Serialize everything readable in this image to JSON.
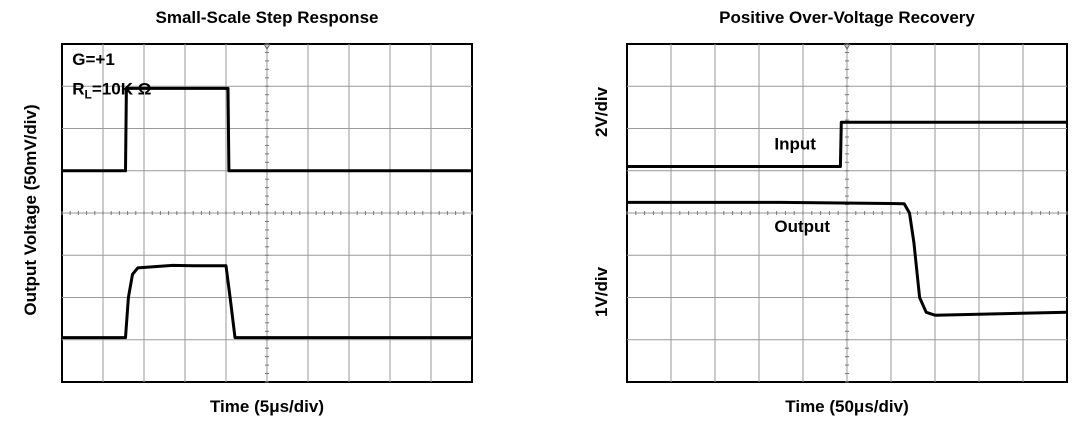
{
  "chart_data": [
    {
      "type": "line",
      "title": "Small-Scale Step Response",
      "xlabel": "Time (5μs/div)",
      "ylabel": "Output Voltage (50mV/div)",
      "grid": true,
      "x_divisions": 10,
      "y_divisions": 8,
      "xlim": [
        0,
        10
      ],
      "ylim": [
        0,
        8
      ],
      "annotations": [
        {
          "text": "G=+1",
          "x": 0.25,
          "y": 7.5
        },
        {
          "text": "R",
          "sub": "L",
          "tail": "=10K Ω",
          "x": 0.25,
          "y": 6.8
        }
      ],
      "series": [
        {
          "points": [
            [
              0,
              5.0
            ],
            [
              1.55,
              5.0
            ],
            [
              1.57,
              6.95
            ],
            [
              4.05,
              6.95
            ],
            [
              4.07,
              5.0
            ],
            [
              10,
              5.0
            ]
          ]
        },
        {
          "points": [
            [
              0,
              1.05
            ],
            [
              1.55,
              1.05
            ],
            [
              1.62,
              2.0
            ],
            [
              1.72,
              2.55
            ],
            [
              1.85,
              2.7
            ],
            [
              2.1,
              2.72
            ],
            [
              2.7,
              2.76
            ],
            [
              3.2,
              2.75
            ],
            [
              4.0,
              2.75
            ],
            [
              4.1,
              2.0
            ],
            [
              4.22,
              1.05
            ],
            [
              10,
              1.05
            ]
          ]
        }
      ]
    },
    {
      "type": "line",
      "title": "Positive Over-Voltage Recovery",
      "xlabel": "Time (50μs/div)",
      "ylabel_top": "2V/div",
      "ylabel_bottom": "1V/div",
      "grid": true,
      "x_divisions": 10,
      "y_divisions": 8,
      "xlim": [
        0,
        10
      ],
      "ylim": [
        0,
        8
      ],
      "annotations": [
        {
          "text": "Input",
          "x": 3.35,
          "y": 5.5
        },
        {
          "text": "Output",
          "x": 3.35,
          "y": 3.55
        }
      ],
      "series": [
        {
          "name": "Input",
          "points": [
            [
              0,
              5.1
            ],
            [
              4.85,
              5.1
            ],
            [
              4.87,
              6.15
            ],
            [
              10,
              6.15
            ]
          ]
        },
        {
          "name": "Output",
          "points": [
            [
              0,
              4.25
            ],
            [
              3.5,
              4.25
            ],
            [
              6.3,
              4.22
            ],
            [
              6.42,
              4.0
            ],
            [
              6.52,
              3.3
            ],
            [
              6.65,
              2.0
            ],
            [
              6.8,
              1.65
            ],
            [
              7.0,
              1.58
            ],
            [
              10,
              1.65
            ]
          ]
        }
      ]
    }
  ]
}
